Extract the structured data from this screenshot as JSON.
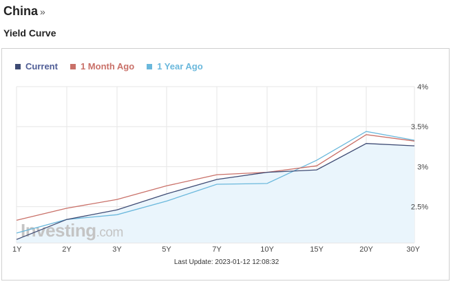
{
  "header": {
    "country": "China",
    "country_arrow": "»",
    "section_title": "Yield Curve"
  },
  "footer": {
    "last_update": "Last Update: 2023-01-12 12:08:32"
  },
  "watermark": {
    "brand": "Investing",
    "suffix": ".com"
  },
  "colors": {
    "current": "#3d4a73",
    "month_ago": "#c97068",
    "year_ago": "#6ab8dc",
    "area_fill": "#eaf5fc",
    "grid": "#e6e6e6"
  },
  "chart_data": {
    "type": "line",
    "title": "",
    "x_categories": [
      "1Y",
      "2Y",
      "3Y",
      "5Y",
      "7Y",
      "10Y",
      "15Y",
      "20Y",
      "30Y"
    ],
    "y_ticks": [
      "4%",
      "3.5%",
      "3%",
      "2.5%"
    ],
    "ylim": [
      2.05,
      4.0
    ],
    "grid": true,
    "legend_position": "top-left",
    "series": [
      {
        "name": "Current",
        "values": [
          2.09,
          2.34,
          2.46,
          2.66,
          2.84,
          2.93,
          2.96,
          3.29,
          3.26
        ]
      },
      {
        "name": "1 Month Ago",
        "values": [
          2.33,
          2.48,
          2.59,
          2.76,
          2.9,
          2.93,
          3.01,
          3.4,
          3.32
        ]
      },
      {
        "name": "1 Year Ago",
        "values": [
          2.17,
          2.34,
          2.4,
          2.57,
          2.78,
          2.79,
          3.08,
          3.44,
          3.33
        ]
      }
    ]
  }
}
